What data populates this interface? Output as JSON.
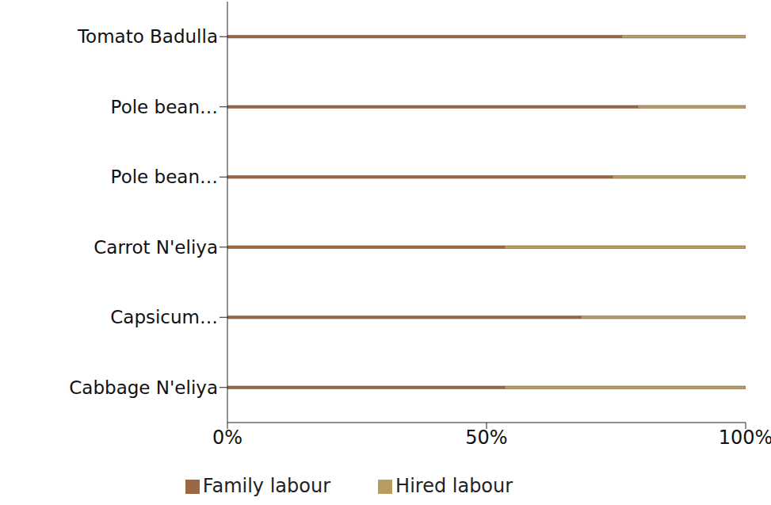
{
  "chart_data": {
    "type": "bar",
    "orientation": "horizontal",
    "stacked": true,
    "categories": [
      "Tomato  Badulla",
      "Pole bean…",
      "Pole bean…",
      "Carrot N'eliya",
      "Capsicum…",
      "Cabbage N'eliya"
    ],
    "series": [
      {
        "name": "Family labour",
        "color": "#9a6844",
        "values": [
          76.1,
          79.2,
          74.3,
          53.5,
          68.2,
          53.5
        ]
      },
      {
        "name": "Hired labour",
        "color": "#b99c5f",
        "values": [
          23.9,
          20.8,
          25.7,
          46.5,
          31.8,
          46.5
        ]
      }
    ],
    "xlim": [
      0,
      100
    ],
    "xticks": [
      {
        "value": 0,
        "label": "0%"
      },
      {
        "value": 50,
        "label": "50%"
      },
      {
        "value": 100,
        "label": "100%"
      }
    ],
    "grid": false,
    "legend": "bottom"
  }
}
